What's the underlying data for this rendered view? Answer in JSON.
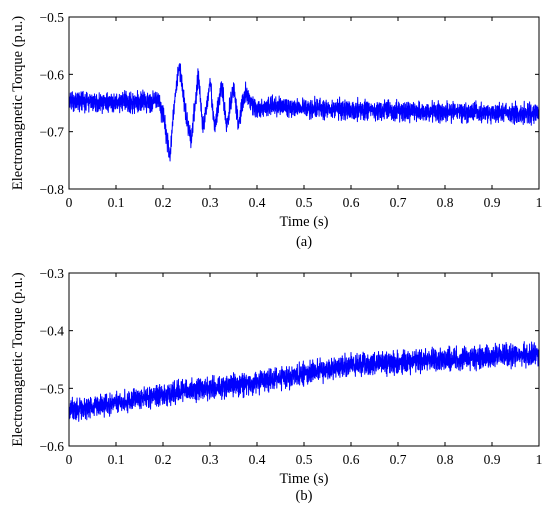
{
  "chart_data": [
    {
      "type": "line",
      "caption": "(a)",
      "xlabel": "Time (s)",
      "ylabel": "Electromagnetic Torque (p.u.)",
      "xlim": [
        0,
        1
      ],
      "ylim": [
        -0.8,
        -0.5
      ],
      "xticks": [
        0,
        0.1,
        0.2,
        0.3,
        0.4,
        0.5,
        0.6,
        0.7,
        0.8,
        0.9,
        1
      ],
      "xtick_labels": [
        "0",
        "0.1",
        "0.2",
        "0.3",
        "0.4",
        "0.5",
        "0.6",
        "0.7",
        "0.8",
        "0.9",
        "1"
      ],
      "yticks": [
        -0.8,
        -0.7,
        -0.6,
        -0.5
      ],
      "ytick_labels": [
        "−0.8",
        "−0.7",
        "−0.6",
        "−0.5"
      ],
      "grid": false,
      "color": "#0000ff",
      "series": [
        {
          "x": [
            0,
            0.05,
            0.1,
            0.15,
            0.19,
            0.2,
            0.21,
            0.215,
            0.225,
            0.235,
            0.25,
            0.26,
            0.275,
            0.285,
            0.3,
            0.31,
            0.325,
            0.335,
            0.35,
            0.36,
            0.375,
            0.4,
            0.45,
            0.5,
            0.6,
            0.7,
            0.8,
            0.9,
            1.0
          ],
          "y": [
            -0.648,
            -0.647,
            -0.648,
            -0.647,
            -0.648,
            -0.67,
            -0.72,
            -0.745,
            -0.64,
            -0.585,
            -0.68,
            -0.715,
            -0.6,
            -0.7,
            -0.61,
            -0.695,
            -0.615,
            -0.69,
            -0.62,
            -0.685,
            -0.63,
            -0.66,
            -0.655,
            -0.66,
            -0.662,
            -0.664,
            -0.666,
            -0.667,
            -0.668
          ],
          "noise_amplitude": 0.03
        }
      ]
    },
    {
      "type": "line",
      "caption": "(b)",
      "xlabel": "Time (s)",
      "ylabel": "Electromagnetic Torque (p.u.)",
      "xlim": [
        0,
        1
      ],
      "ylim": [
        -0.6,
        -0.3
      ],
      "xticks": [
        0,
        0.1,
        0.2,
        0.3,
        0.4,
        0.5,
        0.6,
        0.7,
        0.8,
        0.9,
        1
      ],
      "xtick_labels": [
        "0",
        "0.1",
        "0.2",
        "0.3",
        "0.4",
        "0.5",
        "0.6",
        "0.7",
        "0.8",
        "0.9",
        "1"
      ],
      "yticks": [
        -0.6,
        -0.5,
        -0.4,
        -0.3
      ],
      "ytick_labels": [
        "−0.6",
        "−0.5",
        "−0.4",
        "−0.3"
      ],
      "grid": false,
      "color": "#0000ff",
      "series": [
        {
          "x": [
            0,
            0.1,
            0.2,
            0.3,
            0.4,
            0.5,
            0.6,
            0.7,
            0.8,
            0.9,
            1.0
          ],
          "y": [
            -0.54,
            -0.525,
            -0.51,
            -0.5,
            -0.49,
            -0.475,
            -0.46,
            -0.455,
            -0.45,
            -0.445,
            -0.44
          ],
          "noise_amplitude": 0.032
        }
      ]
    }
  ]
}
